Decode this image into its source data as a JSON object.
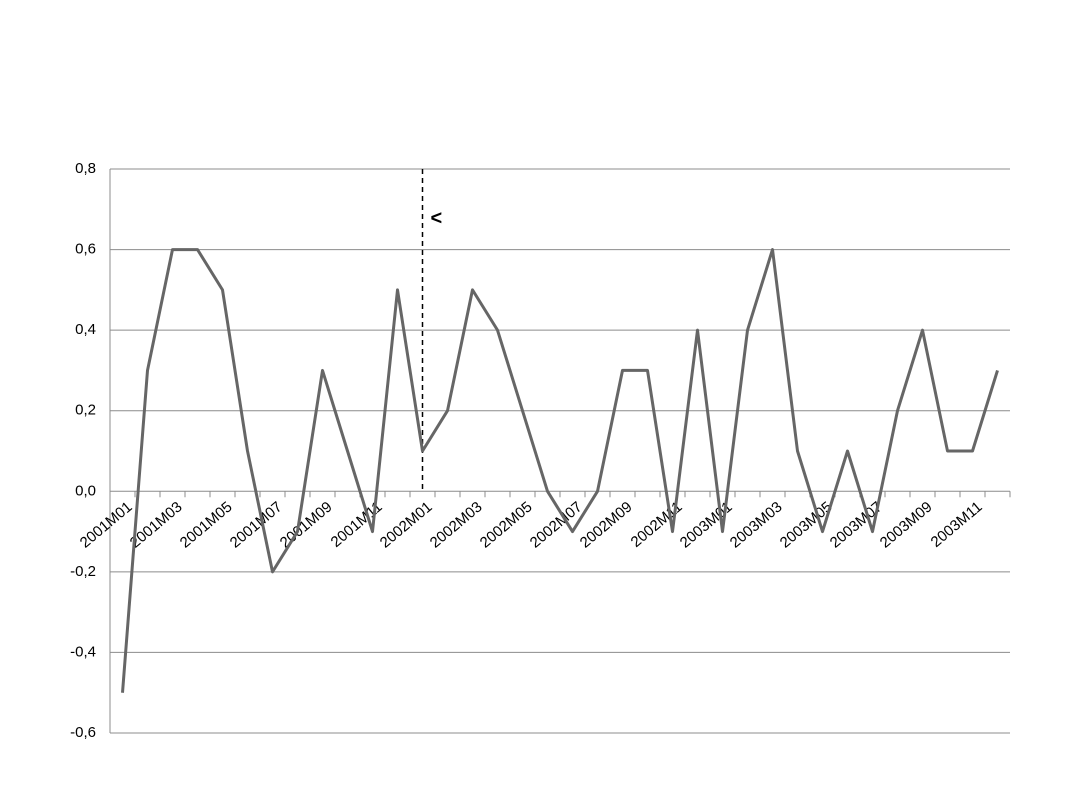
{
  "chart_data": {
    "type": "line",
    "categories": [
      "2001M01",
      null,
      "2001M03",
      null,
      "2001M05",
      null,
      "2001M07",
      null,
      "2001M09",
      null,
      "2001M11",
      null,
      "2002M01",
      null,
      "2002M03",
      null,
      "2002M05",
      null,
      "2002M07",
      null,
      "2002M09",
      null,
      "2002M11",
      null,
      "2003M01",
      null,
      "2003M03",
      null,
      "2003M05",
      null,
      "2003M07",
      null,
      "2003M09",
      null,
      "2003M11",
      null
    ],
    "series": [
      {
        "color": "#666666",
        "values": [
          -0.5,
          0.3,
          0.6,
          0.6,
          0.5,
          0.1,
          -0.2,
          -0.1,
          0.3,
          0.1,
          -0.1,
          0.5,
          0.1,
          0.2,
          0.5,
          0.4,
          0.2,
          0.0,
          -0.1,
          0.0,
          0.3,
          0.3,
          -0.1,
          0.4,
          -0.1,
          0.4,
          0.6,
          0.1,
          -0.1,
          0.1,
          -0.1,
          0.2,
          0.4,
          0.1,
          0.1,
          0.3
        ]
      }
    ],
    "ylim": [
      -0.6,
      0.8
    ],
    "yticks": [
      {
        "value": -0.6,
        "label": "-0,6"
      },
      {
        "value": -0.4,
        "label": "-0,4"
      },
      {
        "value": -0.2,
        "label": "-0,2"
      },
      {
        "value": 0,
        "label": "0,0"
      },
      {
        "value": 0.2,
        "label": "0,2"
      },
      {
        "value": 0.4,
        "label": "0,4"
      },
      {
        "value": 0.6,
        "label": "0,6"
      },
      {
        "value": 0.8,
        "label": "0,8"
      }
    ],
    "grid": true,
    "annotations": [
      {
        "text": "<",
        "x": "2002M01"
      }
    ]
  }
}
